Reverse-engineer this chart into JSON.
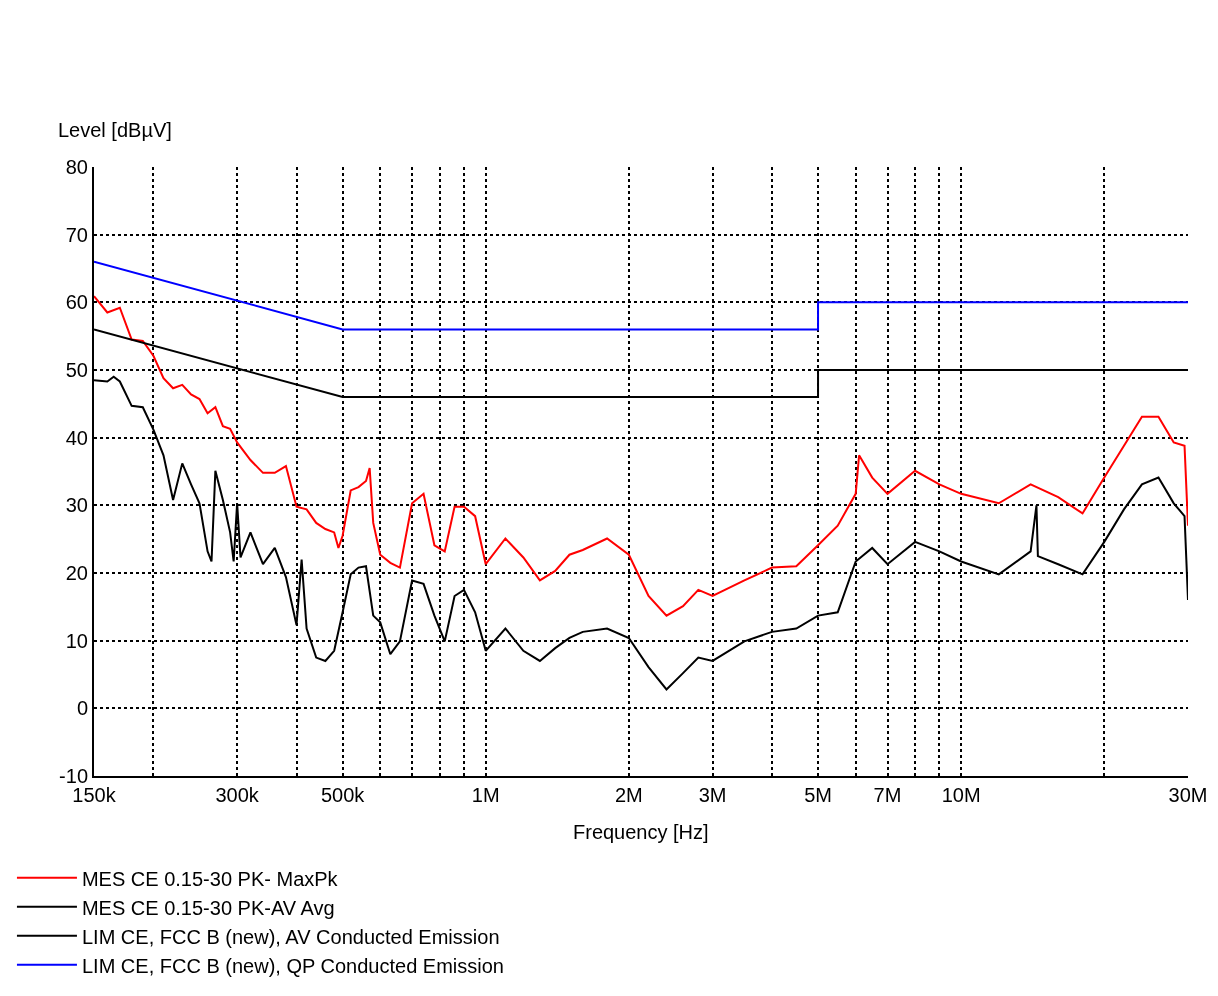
{
  "chart_data": {
    "type": "line",
    "xlabel": "Frequency [Hz]",
    "ylabel": "Level [dBµV]",
    "log": "x",
    "grid": true,
    "legend": "bottom",
    "marker": "none",
    "line_style": "solid",
    "xlim": [
      150000,
      30000000
    ],
    "ylim": [
      -10,
      80
    ],
    "xticks": [
      {
        "value": 150000,
        "label": "150k"
      },
      {
        "value": 200000,
        "label": null
      },
      {
        "value": 300000,
        "label": "300k"
      },
      {
        "value": 400000,
        "label": null
      },
      {
        "value": 500000,
        "label": "500k"
      },
      {
        "value": 600000,
        "label": null
      },
      {
        "value": 700000,
        "label": null
      },
      {
        "value": 800000,
        "label": null
      },
      {
        "value": 900000,
        "label": null
      },
      {
        "value": 1000000,
        "label": "1M"
      },
      {
        "value": 2000000,
        "label": "2M"
      },
      {
        "value": 3000000,
        "label": "3M"
      },
      {
        "value": 4000000,
        "label": null
      },
      {
        "value": 5000000,
        "label": "5M"
      },
      {
        "value": 6000000,
        "label": null
      },
      {
        "value": 7000000,
        "label": "7M"
      },
      {
        "value": 8000000,
        "label": null
      },
      {
        "value": 9000000,
        "label": null
      },
      {
        "value": 10000000,
        "label": "10M"
      },
      {
        "value": 20000000,
        "label": null
      },
      {
        "value": 30000000,
        "label": "30M"
      }
    ],
    "yticks": [
      -10,
      0,
      10,
      20,
      30,
      40,
      50,
      60,
      70,
      80
    ],
    "series": [
      {
        "name": "MES CE 0.15-30 PK- MaxPk",
        "color": "#ff0000",
        "x": [
          150000,
          160000,
          170000,
          180000,
          190000,
          200000,
          210000,
          220000,
          230000,
          240000,
          250000,
          260000,
          270000,
          280000,
          290000,
          300000,
          320000,
          340000,
          360000,
          380000,
          400000,
          420000,
          440000,
          460000,
          480000,
          490000,
          500000,
          520000,
          540000,
          560000,
          570000,
          580000,
          600000,
          630000,
          660000,
          700000,
          740000,
          780000,
          820000,
          860000,
          900000,
          950000,
          1000000,
          1100000,
          1200000,
          1300000,
          1400000,
          1500000,
          1600000,
          1800000,
          2000000,
          2200000,
          2400000,
          2600000,
          2800000,
          3000000,
          3500000,
          4000000,
          4500000,
          5000000,
          5500000,
          6000000,
          6100000,
          6500000,
          7000000,
          8000000,
          9000000,
          10000000,
          12000000,
          14000000,
          16000000,
          18000000,
          20000000,
          22000000,
          24000000,
          26000000,
          28000000,
          29500000,
          30000000
        ],
        "values": [
          60.9,
          58.5,
          59.2,
          54.5,
          54.3,
          52.1,
          48.8,
          47.3,
          47.8,
          46.4,
          45.7,
          43.6,
          44.5,
          41.7,
          41.3,
          39.3,
          36.7,
          34.8,
          34.8,
          35.8,
          29.8,
          29.4,
          27.4,
          26.5,
          26.0,
          23.7,
          25.5,
          32.2,
          32.7,
          33.6,
          35.5,
          27.4,
          22.7,
          21.5,
          20.8,
          30.3,
          31.7,
          24.1,
          23.2,
          29.8,
          29.8,
          28.4,
          21.3,
          25.1,
          22.3,
          18.9,
          20.3,
          22.7,
          23.4,
          25.1,
          22.7,
          16.6,
          13.7,
          15.1,
          17.5,
          16.6,
          18.9,
          20.8,
          21.0,
          24.1,
          27.0,
          31.7,
          37.4,
          34.1,
          31.7,
          35.1,
          33.1,
          31.7,
          30.3,
          33.1,
          31.2,
          28.8,
          34.1,
          38.8,
          43.1,
          43.1,
          39.3,
          38.8,
          27.0
        ]
      },
      {
        "name": "MES CE 0.15-30 PK-AV Avg",
        "color": "#000000",
        "x": [
          150000,
          160000,
          165000,
          170000,
          180000,
          190000,
          200000,
          210000,
          220000,
          230000,
          240000,
          250000,
          260000,
          265000,
          270000,
          280000,
          290000,
          295000,
          300000,
          305000,
          320000,
          340000,
          360000,
          380000,
          400000,
          410000,
          420000,
          440000,
          460000,
          480000,
          500000,
          520000,
          540000,
          560000,
          580000,
          600000,
          630000,
          660000,
          700000,
          740000,
          780000,
          820000,
          860000,
          900000,
          950000,
          1000000,
          1100000,
          1200000,
          1300000,
          1400000,
          1500000,
          1600000,
          1800000,
          2000000,
          2200000,
          2400000,
          2600000,
          2800000,
          3000000,
          3500000,
          4000000,
          4500000,
          5000000,
          5500000,
          6000000,
          6500000,
          7000000,
          8000000,
          9000000,
          10000000,
          12000000,
          14000000,
          14400000,
          14500000,
          16000000,
          18000000,
          20000000,
          22000000,
          24000000,
          26000000,
          28000000,
          29500000,
          30000000
        ],
        "values": [
          48.5,
          48.3,
          49.0,
          48.3,
          44.7,
          44.5,
          41.2,
          37.4,
          30.8,
          36.2,
          33.1,
          30.3,
          23.2,
          21.7,
          35.1,
          30.8,
          26.0,
          21.7,
          30.3,
          22.3,
          26.0,
          21.3,
          23.7,
          19.4,
          12.3,
          22.0,
          11.8,
          7.5,
          7.0,
          8.5,
          14.2,
          19.8,
          20.8,
          21.0,
          13.7,
          12.7,
          8.0,
          9.9,
          18.9,
          18.4,
          13.7,
          9.9,
          16.6,
          17.5,
          14.2,
          8.5,
          11.8,
          8.5,
          7.0,
          8.9,
          10.4,
          11.3,
          11.8,
          10.4,
          6.1,
          2.8,
          5.2,
          7.5,
          7.0,
          9.9,
          11.3,
          11.8,
          13.7,
          14.2,
          21.7,
          23.7,
          21.3,
          24.6,
          23.2,
          21.7,
          19.8,
          23.2,
          30.0,
          22.5,
          21.3,
          19.8,
          24.6,
          29.4,
          33.1,
          34.1,
          30.3,
          28.4,
          16.0
        ]
      },
      {
        "name": "LIM CE, FCC B (new), AV Conducted Emission",
        "color": "#000000",
        "x": [
          150000,
          500000,
          5000000,
          5000000,
          30000000
        ],
        "values": [
          56,
          46,
          46,
          50,
          50
        ]
      },
      {
        "name": "LIM CE, FCC B (new), QP Conducted Emission",
        "color": "#0000ff",
        "x": [
          150000,
          500000,
          5000000,
          5000000,
          30000000
        ],
        "values": [
          66,
          56,
          56,
          60,
          60
        ]
      }
    ]
  }
}
